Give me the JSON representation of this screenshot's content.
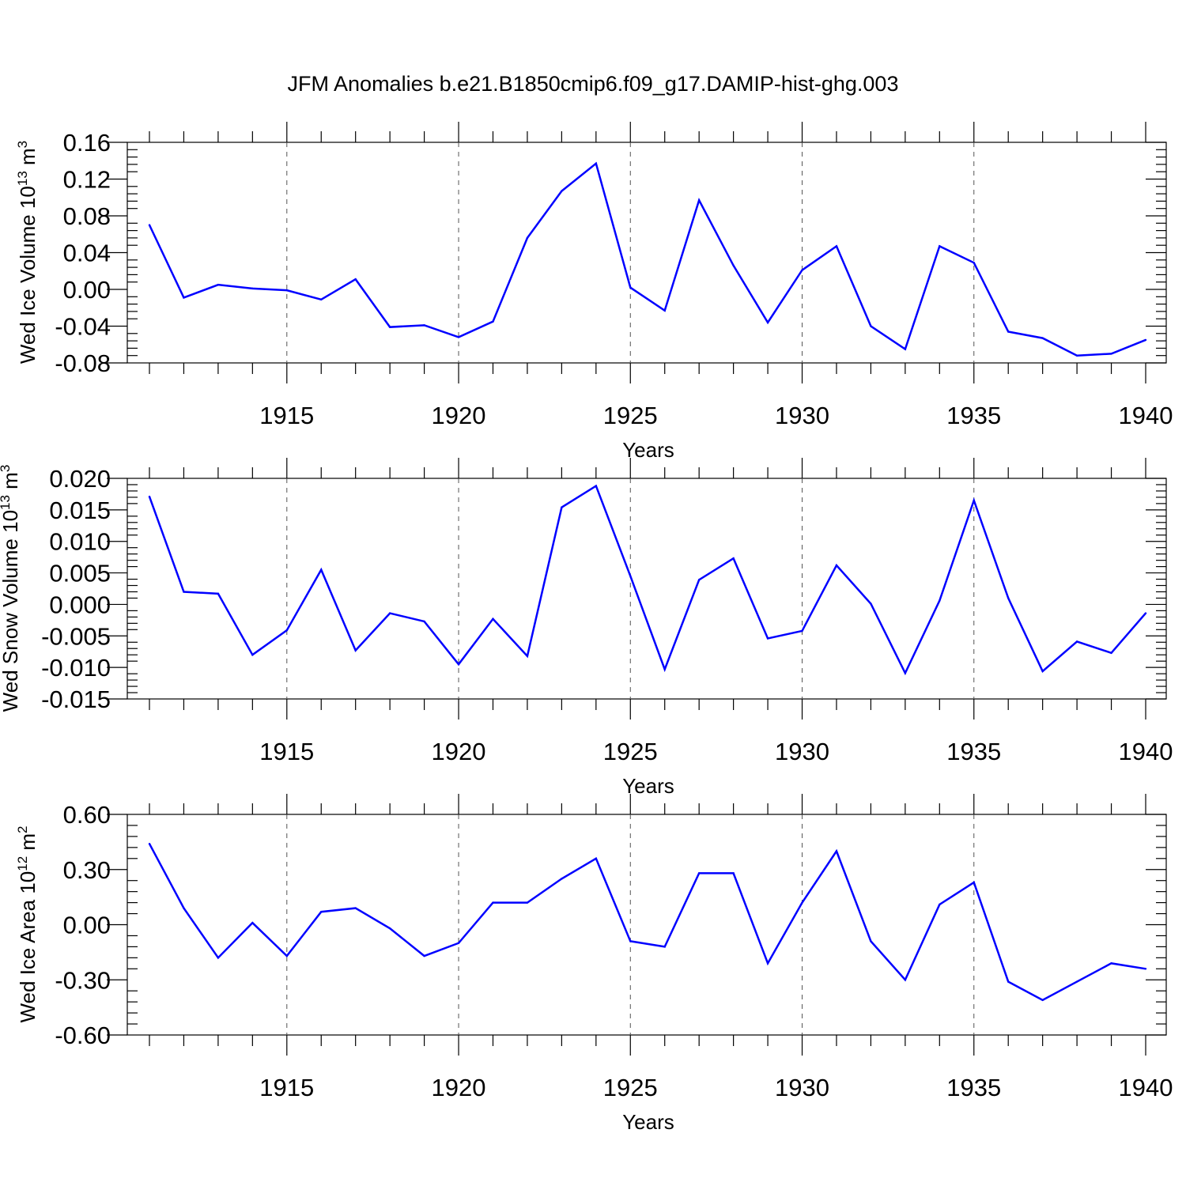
{
  "title": "JFM Anomalies b.e21.B1850cmip6.f09_g17.DAMIP-hist-ghg.003",
  "colors": {
    "line": "#0000ff",
    "axes": "#000000",
    "grid": "#555555"
  },
  "chart_data": [
    {
      "type": "line",
      "ylabel": {
        "main": "Wed Ice Volume 10",
        "exp": "13",
        "unit": " m",
        "unit_exp": "3"
      },
      "xlabel": "Years",
      "xlim": [
        1911,
        1940
      ],
      "ylim": [
        -0.08,
        0.16
      ],
      "yticks": [
        -0.08,
        -0.04,
        0.0,
        0.04,
        0.08,
        0.12,
        0.16
      ],
      "ytick_labels": [
        "-0.08",
        "-0.04",
        "0.00",
        "0.04",
        "0.08",
        "0.12",
        "0.16"
      ],
      "xticks": [
        1915,
        1920,
        1925,
        1930,
        1935,
        1940
      ],
      "xtick_labels": [
        "1915",
        "1920",
        "1925",
        "1930",
        "1935",
        "1940"
      ],
      "x": [
        1911,
        1912,
        1913,
        1914,
        1915,
        1916,
        1917,
        1918,
        1919,
        1920,
        1921,
        1922,
        1923,
        1924,
        1925,
        1926,
        1927,
        1928,
        1929,
        1930,
        1931,
        1932,
        1933,
        1934,
        1935,
        1936,
        1937,
        1938,
        1939,
        1940
      ],
      "values": [
        0.07,
        -0.009,
        0.005,
        0.001,
        -0.001,
        -0.011,
        0.011,
        -0.041,
        -0.039,
        -0.052,
        -0.035,
        0.056,
        0.107,
        0.137,
        0.002,
        -0.023,
        0.097,
        0.026,
        -0.036,
        0.021,
        0.047,
        -0.04,
        -0.065,
        0.047,
        0.029,
        -0.046,
        -0.053,
        -0.072,
        -0.07,
        -0.055
      ]
    },
    {
      "type": "line",
      "ylabel": {
        "main": "Wed Snow Volume 10",
        "exp": "13",
        "unit": " m",
        "unit_exp": "3"
      },
      "xlabel": "Years",
      "xlim": [
        1911,
        1940
      ],
      "ylim": [
        -0.015,
        0.02
      ],
      "yticks": [
        -0.015,
        -0.01,
        -0.005,
        0.0,
        0.005,
        0.01,
        0.015,
        0.02
      ],
      "ytick_labels": [
        "-0.015",
        "-0.010",
        "-0.005",
        "0.000",
        "0.005",
        "0.010",
        "0.015",
        "0.020"
      ],
      "xticks": [
        1915,
        1920,
        1925,
        1930,
        1935,
        1940
      ],
      "xtick_labels": [
        "1915",
        "1920",
        "1925",
        "1930",
        "1935",
        "1940"
      ],
      "x": [
        1911,
        1912,
        1913,
        1914,
        1915,
        1916,
        1917,
        1918,
        1919,
        1920,
        1921,
        1922,
        1923,
        1924,
        1925,
        1926,
        1927,
        1928,
        1929,
        1930,
        1931,
        1932,
        1933,
        1934,
        1935,
        1936,
        1937,
        1938,
        1939,
        1940
      ],
      "values": [
        0.0171,
        0.002,
        0.0017,
        -0.008,
        -0.0041,
        0.0055,
        -0.0073,
        -0.0014,
        -0.0027,
        -0.0095,
        -0.0023,
        -0.0082,
        0.0154,
        0.0188,
        0.0045,
        -0.0103,
        0.0039,
        0.0073,
        -0.0054,
        -0.0042,
        0.0062,
        0.0001,
        -0.0109,
        0.0006,
        0.0165,
        0.001,
        -0.0106,
        -0.0059,
        -0.0077,
        -0.0014
      ]
    },
    {
      "type": "line",
      "ylabel": {
        "main": "Wed Ice Area 10",
        "exp": "12",
        "unit": " m",
        "unit_exp": "2"
      },
      "xlabel": "Years",
      "xlim": [
        1911,
        1940
      ],
      "ylim": [
        -0.6,
        0.6
      ],
      "yticks": [
        -0.6,
        -0.3,
        0.0,
        0.3,
        0.6
      ],
      "ytick_labels": [
        "-0.60",
        "-0.30",
        "0.00",
        "0.30",
        "0.60"
      ],
      "xticks": [
        1915,
        1920,
        1925,
        1930,
        1935,
        1940
      ],
      "xtick_labels": [
        "1915",
        "1920",
        "1925",
        "1930",
        "1935",
        "1940"
      ],
      "x": [
        1911,
        1912,
        1913,
        1914,
        1915,
        1916,
        1917,
        1918,
        1919,
        1920,
        1921,
        1922,
        1923,
        1924,
        1925,
        1926,
        1927,
        1928,
        1929,
        1930,
        1931,
        1932,
        1933,
        1934,
        1935,
        1936,
        1937,
        1938,
        1939,
        1940
      ],
      "values": [
        0.44,
        0.09,
        -0.18,
        0.01,
        -0.17,
        0.07,
        0.09,
        -0.02,
        -0.17,
        -0.1,
        0.12,
        0.12,
        0.25,
        0.36,
        -0.09,
        -0.12,
        0.28,
        0.28,
        -0.21,
        0.12,
        0.4,
        -0.09,
        -0.3,
        0.11,
        0.23,
        -0.31,
        -0.41,
        -0.31,
        -0.21,
        -0.24
      ]
    }
  ]
}
